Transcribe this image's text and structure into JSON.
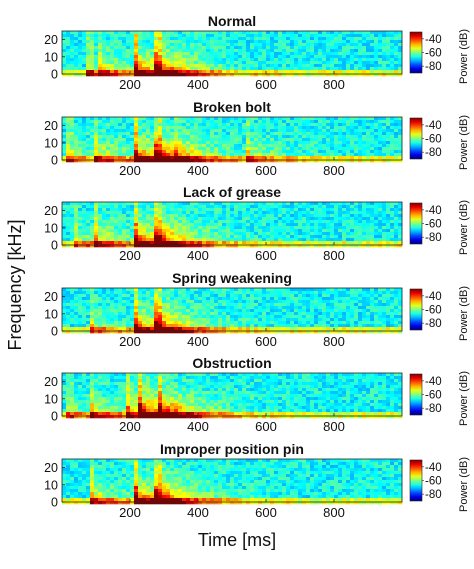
{
  "figure": {
    "ylabel": "Frequency [kHz]",
    "xlabel": "Time [ms]"
  },
  "chart_data": [
    {
      "type": "heatmap",
      "title": "Normal",
      "xlabel": "Time [ms]",
      "ylabel": "Frequency [kHz]",
      "xlim": [
        0,
        1000
      ],
      "ylim": [
        0,
        25
      ],
      "xticks": [
        200,
        400,
        600,
        800
      ],
      "yticks": [
        0,
        10,
        20
      ],
      "colorbar": {
        "label": "Power (dB)",
        "ticks": [
          -40,
          -60,
          -80
        ],
        "range": [
          -90,
          -30
        ]
      },
      "events": [
        {
          "t": 80,
          "strength": 0.45
        },
        {
          "t": 105,
          "strength": 0.35
        },
        {
          "t": 215,
          "strength": 1.0
        },
        {
          "t": 280,
          "strength": 0.85
        }
      ]
    },
    {
      "type": "heatmap",
      "title": "Broken bolt",
      "xlabel": "Time [ms]",
      "ylabel": "Frequency [kHz]",
      "xlim": [
        0,
        1000
      ],
      "ylim": [
        0,
        25
      ],
      "xticks": [
        200,
        400,
        600,
        800
      ],
      "yticks": [
        0,
        10,
        20
      ],
      "colorbar": {
        "label": "Power (dB)",
        "ticks": [
          -40,
          -60,
          -80
        ],
        "range": [
          -90,
          -30
        ]
      },
      "events": [
        {
          "t": 20,
          "strength": 0.4
        },
        {
          "t": 100,
          "strength": 0.5
        },
        {
          "t": 215,
          "strength": 0.95
        },
        {
          "t": 280,
          "strength": 0.8
        },
        {
          "t": 330,
          "strength": 0.4
        },
        {
          "t": 540,
          "strength": 0.45
        }
      ]
    },
    {
      "type": "heatmap",
      "title": "Lack of grease",
      "xlabel": "Time [ms]",
      "ylabel": "Frequency [kHz]",
      "xlim": [
        0,
        1000
      ],
      "ylim": [
        0,
        25
      ],
      "xticks": [
        200,
        400,
        600,
        800
      ],
      "yticks": [
        0,
        10,
        20
      ],
      "colorbar": {
        "label": "Power (dB)",
        "ticks": [
          -40,
          -60,
          -80
        ],
        "range": [
          -90,
          -30
        ]
      },
      "events": [
        {
          "t": 40,
          "strength": 0.45
        },
        {
          "t": 95,
          "strength": 0.55
        },
        {
          "t": 215,
          "strength": 1.0
        },
        {
          "t": 280,
          "strength": 0.85
        }
      ]
    },
    {
      "type": "heatmap",
      "title": "Spring weakening",
      "xlabel": "Time [ms]",
      "ylabel": "Frequency [kHz]",
      "xlim": [
        0,
        1000
      ],
      "ylim": [
        0,
        25
      ],
      "xticks": [
        200,
        400,
        600,
        800
      ],
      "yticks": [
        0,
        10,
        20
      ],
      "colorbar": {
        "label": "Power (dB)",
        "ticks": [
          -40,
          -60,
          -80
        ],
        "range": [
          -90,
          -30
        ]
      },
      "events": [
        {
          "t": 85,
          "strength": 0.45
        },
        {
          "t": 215,
          "strength": 0.95
        },
        {
          "t": 280,
          "strength": 0.85
        }
      ]
    },
    {
      "type": "heatmap",
      "title": "Obstruction",
      "xlabel": "Time [ms]",
      "ylabel": "Frequency [kHz]",
      "xlim": [
        0,
        1000
      ],
      "ylim": [
        0,
        25
      ],
      "xticks": [
        200,
        400,
        600,
        800
      ],
      "yticks": [
        0,
        10,
        20
      ],
      "colorbar": {
        "label": "Power (dB)",
        "ticks": [
          -40,
          -60,
          -80
        ],
        "range": [
          -90,
          -30
        ]
      },
      "events": [
        {
          "t": 20,
          "strength": 0.4
        },
        {
          "t": 90,
          "strength": 0.45
        },
        {
          "t": 195,
          "strength": 0.6
        },
        {
          "t": 225,
          "strength": 0.95
        },
        {
          "t": 285,
          "strength": 0.8
        }
      ]
    },
    {
      "type": "heatmap",
      "title": "Improper position pin",
      "xlabel": "Time [ms]",
      "ylabel": "Frequency [kHz]",
      "xlim": [
        0,
        1000
      ],
      "ylim": [
        0,
        25
      ],
      "xticks": [
        200,
        400,
        600,
        800
      ],
      "yticks": [
        0,
        10,
        20
      ],
      "colorbar": {
        "label": "Power (dB)",
        "ticks": [
          -40,
          -60,
          -80
        ],
        "range": [
          -90,
          -30
        ]
      },
      "events": [
        {
          "t": 90,
          "strength": 0.6
        },
        {
          "t": 215,
          "strength": 1.0
        },
        {
          "t": 280,
          "strength": 0.8
        }
      ]
    }
  ]
}
